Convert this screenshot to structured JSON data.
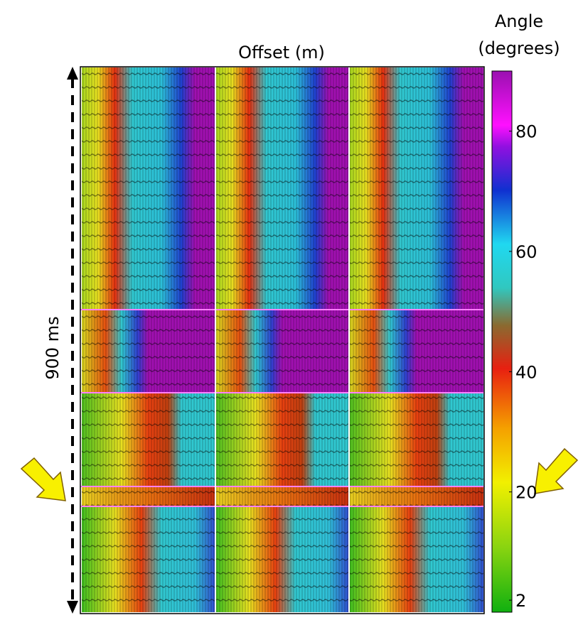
{
  "header": {
    "offset_label": "Offset (m)"
  },
  "colorbar": {
    "label": [
      "Angle",
      "(degrees)"
    ],
    "lim": [
      0,
      90
    ],
    "ticks": [
      2,
      20,
      40,
      60,
      80
    ]
  },
  "time_scale": {
    "label": "900 ms"
  }
}
